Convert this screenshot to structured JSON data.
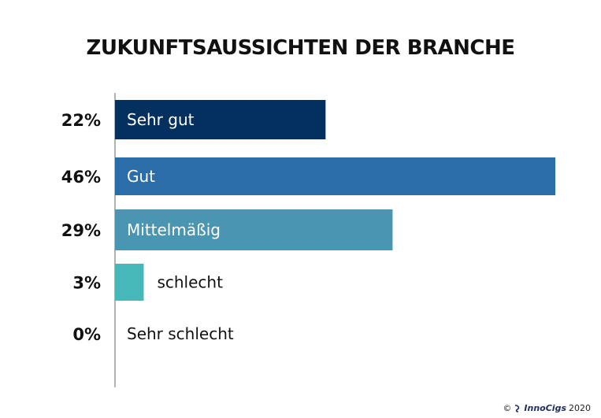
{
  "chart_data": {
    "type": "bar",
    "orientation": "horizontal",
    "title": "ZUKUNFTSAUSSICHTEN DER BRANCHE",
    "categories": [
      "Sehr gut",
      "Gut",
      "Mittelmäßig",
      "schlecht",
      "Sehr schlecht"
    ],
    "values": [
      22,
      46,
      29,
      3,
      0
    ],
    "value_labels": [
      "22%",
      "46%",
      "29%",
      "3%",
      "0%"
    ],
    "colors": [
      "#04305f",
      "#2a6da8",
      "#4a95b1",
      "#46b8b9",
      "#ffffff"
    ],
    "xlim": [
      0,
      46
    ],
    "grid": false,
    "legend": "none"
  },
  "footer": {
    "copyright": "©",
    "brand": "InnoCigs",
    "year": "2020"
  }
}
